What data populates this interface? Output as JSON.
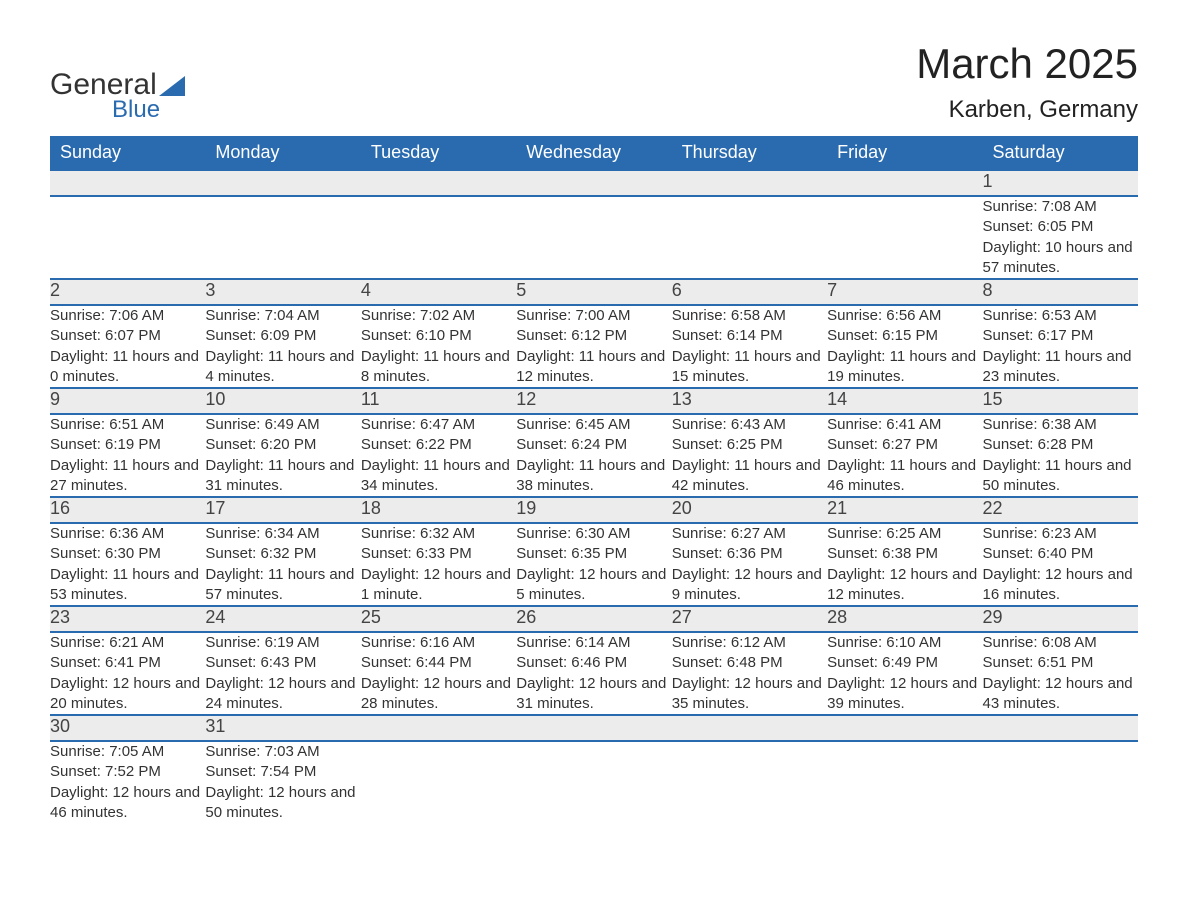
{
  "brand": {
    "general": "General",
    "blue": "Blue"
  },
  "title": "March 2025",
  "location": "Karben, Germany",
  "colors": {
    "header_bg": "#2a6bb0",
    "header_text": "#ffffff",
    "daynum_bg": "#ececec",
    "row_divider": "#2a6bb0",
    "text": "#333333",
    "page_bg": "#ffffff"
  },
  "headers": [
    "Sunday",
    "Monday",
    "Tuesday",
    "Wednesday",
    "Thursday",
    "Friday",
    "Saturday"
  ],
  "weeks": [
    [
      null,
      null,
      null,
      null,
      null,
      null,
      {
        "d": "1",
        "sr": "Sunrise: 7:08 AM",
        "ss": "Sunset: 6:05 PM",
        "dl": "Daylight: 10 hours and 57 minutes."
      }
    ],
    [
      {
        "d": "2",
        "sr": "Sunrise: 7:06 AM",
        "ss": "Sunset: 6:07 PM",
        "dl": "Daylight: 11 hours and 0 minutes."
      },
      {
        "d": "3",
        "sr": "Sunrise: 7:04 AM",
        "ss": "Sunset: 6:09 PM",
        "dl": "Daylight: 11 hours and 4 minutes."
      },
      {
        "d": "4",
        "sr": "Sunrise: 7:02 AM",
        "ss": "Sunset: 6:10 PM",
        "dl": "Daylight: 11 hours and 8 minutes."
      },
      {
        "d": "5",
        "sr": "Sunrise: 7:00 AM",
        "ss": "Sunset: 6:12 PM",
        "dl": "Daylight: 11 hours and 12 minutes."
      },
      {
        "d": "6",
        "sr": "Sunrise: 6:58 AM",
        "ss": "Sunset: 6:14 PM",
        "dl": "Daylight: 11 hours and 15 minutes."
      },
      {
        "d": "7",
        "sr": "Sunrise: 6:56 AM",
        "ss": "Sunset: 6:15 PM",
        "dl": "Daylight: 11 hours and 19 minutes."
      },
      {
        "d": "8",
        "sr": "Sunrise: 6:53 AM",
        "ss": "Sunset: 6:17 PM",
        "dl": "Daylight: 11 hours and 23 minutes."
      }
    ],
    [
      {
        "d": "9",
        "sr": "Sunrise: 6:51 AM",
        "ss": "Sunset: 6:19 PM",
        "dl": "Daylight: 11 hours and 27 minutes."
      },
      {
        "d": "10",
        "sr": "Sunrise: 6:49 AM",
        "ss": "Sunset: 6:20 PM",
        "dl": "Daylight: 11 hours and 31 minutes."
      },
      {
        "d": "11",
        "sr": "Sunrise: 6:47 AM",
        "ss": "Sunset: 6:22 PM",
        "dl": "Daylight: 11 hours and 34 minutes."
      },
      {
        "d": "12",
        "sr": "Sunrise: 6:45 AM",
        "ss": "Sunset: 6:24 PM",
        "dl": "Daylight: 11 hours and 38 minutes."
      },
      {
        "d": "13",
        "sr": "Sunrise: 6:43 AM",
        "ss": "Sunset: 6:25 PM",
        "dl": "Daylight: 11 hours and 42 minutes."
      },
      {
        "d": "14",
        "sr": "Sunrise: 6:41 AM",
        "ss": "Sunset: 6:27 PM",
        "dl": "Daylight: 11 hours and 46 minutes."
      },
      {
        "d": "15",
        "sr": "Sunrise: 6:38 AM",
        "ss": "Sunset: 6:28 PM",
        "dl": "Daylight: 11 hours and 50 minutes."
      }
    ],
    [
      {
        "d": "16",
        "sr": "Sunrise: 6:36 AM",
        "ss": "Sunset: 6:30 PM",
        "dl": "Daylight: 11 hours and 53 minutes."
      },
      {
        "d": "17",
        "sr": "Sunrise: 6:34 AM",
        "ss": "Sunset: 6:32 PM",
        "dl": "Daylight: 11 hours and 57 minutes."
      },
      {
        "d": "18",
        "sr": "Sunrise: 6:32 AM",
        "ss": "Sunset: 6:33 PM",
        "dl": "Daylight: 12 hours and 1 minute."
      },
      {
        "d": "19",
        "sr": "Sunrise: 6:30 AM",
        "ss": "Sunset: 6:35 PM",
        "dl": "Daylight: 12 hours and 5 minutes."
      },
      {
        "d": "20",
        "sr": "Sunrise: 6:27 AM",
        "ss": "Sunset: 6:36 PM",
        "dl": "Daylight: 12 hours and 9 minutes."
      },
      {
        "d": "21",
        "sr": "Sunrise: 6:25 AM",
        "ss": "Sunset: 6:38 PM",
        "dl": "Daylight: 12 hours and 12 minutes."
      },
      {
        "d": "22",
        "sr": "Sunrise: 6:23 AM",
        "ss": "Sunset: 6:40 PM",
        "dl": "Daylight: 12 hours and 16 minutes."
      }
    ],
    [
      {
        "d": "23",
        "sr": "Sunrise: 6:21 AM",
        "ss": "Sunset: 6:41 PM",
        "dl": "Daylight: 12 hours and 20 minutes."
      },
      {
        "d": "24",
        "sr": "Sunrise: 6:19 AM",
        "ss": "Sunset: 6:43 PM",
        "dl": "Daylight: 12 hours and 24 minutes."
      },
      {
        "d": "25",
        "sr": "Sunrise: 6:16 AM",
        "ss": "Sunset: 6:44 PM",
        "dl": "Daylight: 12 hours and 28 minutes."
      },
      {
        "d": "26",
        "sr": "Sunrise: 6:14 AM",
        "ss": "Sunset: 6:46 PM",
        "dl": "Daylight: 12 hours and 31 minutes."
      },
      {
        "d": "27",
        "sr": "Sunrise: 6:12 AM",
        "ss": "Sunset: 6:48 PM",
        "dl": "Daylight: 12 hours and 35 minutes."
      },
      {
        "d": "28",
        "sr": "Sunrise: 6:10 AM",
        "ss": "Sunset: 6:49 PM",
        "dl": "Daylight: 12 hours and 39 minutes."
      },
      {
        "d": "29",
        "sr": "Sunrise: 6:08 AM",
        "ss": "Sunset: 6:51 PM",
        "dl": "Daylight: 12 hours and 43 minutes."
      }
    ],
    [
      {
        "d": "30",
        "sr": "Sunrise: 7:05 AM",
        "ss": "Sunset: 7:52 PM",
        "dl": "Daylight: 12 hours and 46 minutes."
      },
      {
        "d": "31",
        "sr": "Sunrise: 7:03 AM",
        "ss": "Sunset: 7:54 PM",
        "dl": "Daylight: 12 hours and 50 minutes."
      },
      null,
      null,
      null,
      null,
      null
    ]
  ]
}
